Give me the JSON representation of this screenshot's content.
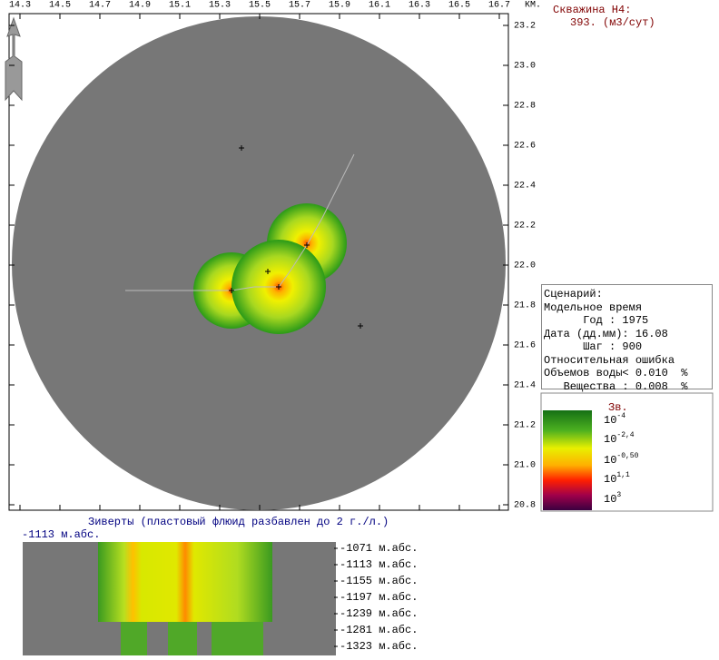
{
  "well": {
    "title": "Скважина Н4:",
    "rate": "393. (м3/сут)"
  },
  "map": {
    "x_labels": [
      "14.3",
      "14.5",
      "14.7",
      "14.9",
      "15.1",
      "15.3",
      "15.5",
      "15.7",
      "15.9",
      "16.1",
      "16.3",
      "16.5",
      "16.7"
    ],
    "x_unit": "КМ.",
    "y_labels": [
      "23.2",
      "23.0",
      "22.8",
      "22.6",
      "22.4",
      "22.2",
      "22.0",
      "21.8",
      "21.6",
      "21.4",
      "21.2",
      "21.0",
      "20.8"
    ]
  },
  "scenario": {
    "lines": [
      "Сценарий:",
      "Модельное время",
      "      Год : 1975",
      "Дата (дд.мм): 16.08",
      "      Шаг : 900",
      "Относительная ошибка",
      "Объемов воды< 0.010  %",
      "   Вещества : 0.008  %"
    ]
  },
  "legend": {
    "title": "Зв.",
    "labels": [
      {
        "base": "10",
        "exp": "-4"
      },
      {
        "base": "10",
        "exp": "-2,4"
      },
      {
        "base": "10",
        "exp": "-0,50"
      },
      {
        "base": "10",
        "exp": "1,1"
      },
      {
        "base": "10",
        "exp": "3"
      }
    ]
  },
  "section": {
    "title": "Зиверты (пластовый флюид разбавлен до 2 г./л.)",
    "level": "-1113 м.абс.",
    "depths": [
      "-1071 м.абс.",
      "-1113 м.абс.",
      "-1155 м.абс.",
      "-1197 м.абс.",
      "-1239 м.абс.",
      "-1281 м.абс.",
      "-1323 м.абс."
    ]
  }
}
